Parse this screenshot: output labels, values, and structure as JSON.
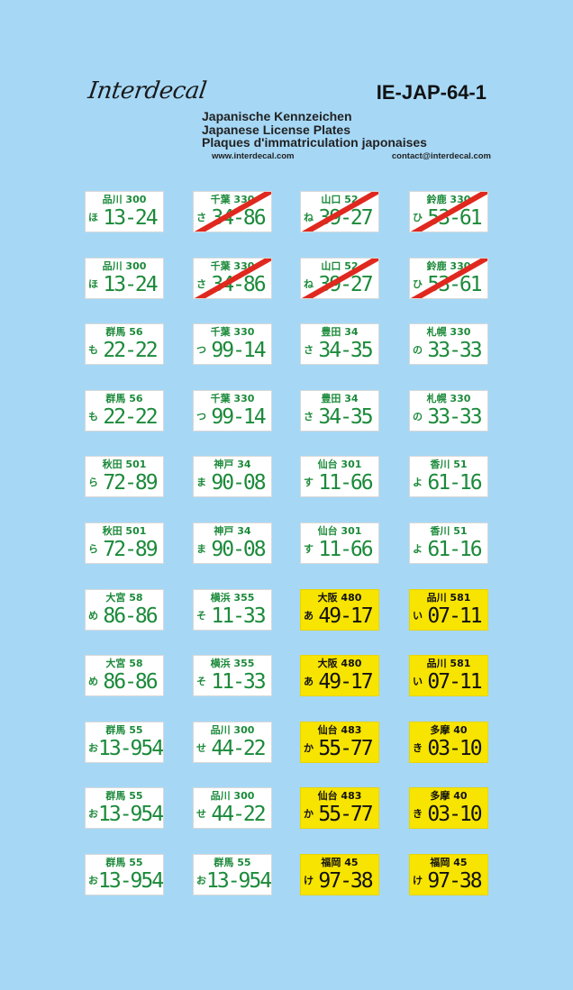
{
  "header": {
    "brand": "Interdecal",
    "code": "IE-JAP-64-1",
    "title_de": "Japanische Kennzeichen",
    "title_en": "Japanese License Plates",
    "title_fr": "Plaques d'immatriculation japonaises",
    "website": "www.interdecal.com",
    "email": "contact@interdecal.com"
  },
  "colors": {
    "background": "#a6d8f6",
    "plate_white": "#ffffff",
    "plate_yellow": "#f7e400",
    "text_green": "#1b8a3a",
    "strike_red": "#e0281e"
  },
  "plates": [
    {
      "top": "品川 300",
      "kana": "ほ",
      "num": "13-24",
      "style": "green",
      "crossed": false
    },
    {
      "top": "千葉 330",
      "kana": "さ",
      "num": "34-86",
      "style": "green",
      "crossed": true
    },
    {
      "top": "山口 52",
      "kana": "ね",
      "num": "39-27",
      "style": "green",
      "crossed": true
    },
    {
      "top": "鈴鹿 330",
      "kana": "ひ",
      "num": "53-61",
      "style": "green",
      "crossed": true
    },
    {
      "top": "品川 300",
      "kana": "ほ",
      "num": "13-24",
      "style": "green",
      "crossed": false
    },
    {
      "top": "千葉 330",
      "kana": "さ",
      "num": "34-86",
      "style": "green",
      "crossed": true
    },
    {
      "top": "山口 52",
      "kana": "ね",
      "num": "39-27",
      "style": "green",
      "crossed": true
    },
    {
      "top": "鈴鹿 330",
      "kana": "ひ",
      "num": "53-61",
      "style": "green",
      "crossed": true
    },
    {
      "top": "群馬 56",
      "kana": "も",
      "num": "22-22",
      "style": "green",
      "crossed": false
    },
    {
      "top": "千葉 330",
      "kana": "つ",
      "num": "99-14",
      "style": "green",
      "crossed": false
    },
    {
      "top": "豊田 34",
      "kana": "さ",
      "num": "34-35",
      "style": "green",
      "crossed": false
    },
    {
      "top": "札幌 330",
      "kana": "の",
      "num": "33-33",
      "style": "green",
      "crossed": false
    },
    {
      "top": "群馬 56",
      "kana": "も",
      "num": "22-22",
      "style": "green",
      "crossed": false
    },
    {
      "top": "千葉 330",
      "kana": "つ",
      "num": "99-14",
      "style": "green",
      "crossed": false
    },
    {
      "top": "豊田 34",
      "kana": "さ",
      "num": "34-35",
      "style": "green",
      "crossed": false
    },
    {
      "top": "札幌 330",
      "kana": "の",
      "num": "33-33",
      "style": "green",
      "crossed": false
    },
    {
      "top": "秋田 501",
      "kana": "ら",
      "num": "72-89",
      "style": "green",
      "crossed": false
    },
    {
      "top": "神戸 34",
      "kana": "ま",
      "num": "90-08",
      "style": "green",
      "crossed": false
    },
    {
      "top": "仙台 301",
      "kana": "す",
      "num": "11-66",
      "style": "green",
      "crossed": false
    },
    {
      "top": "香川 51",
      "kana": "よ",
      "num": "61-16",
      "style": "green",
      "crossed": false
    },
    {
      "top": "秋田 501",
      "kana": "ら",
      "num": "72-89",
      "style": "green",
      "crossed": false
    },
    {
      "top": "神戸 34",
      "kana": "ま",
      "num": "90-08",
      "style": "green",
      "crossed": false
    },
    {
      "top": "仙台 301",
      "kana": "す",
      "num": "11-66",
      "style": "green",
      "crossed": false
    },
    {
      "top": "香川 51",
      "kana": "よ",
      "num": "61-16",
      "style": "green",
      "crossed": false
    },
    {
      "top": "大宮 58",
      "kana": "め",
      "num": "86-86",
      "style": "green",
      "crossed": false
    },
    {
      "top": "横浜 355",
      "kana": "そ",
      "num": "11-33",
      "style": "green",
      "crossed": false
    },
    {
      "top": "大阪 480",
      "kana": "あ",
      "num": "49-17",
      "style": "yellow",
      "crossed": false
    },
    {
      "top": "品川 581",
      "kana": "い",
      "num": "07-11",
      "style": "yellow",
      "crossed": false
    },
    {
      "top": "大宮 58",
      "kana": "め",
      "num": "86-86",
      "style": "green",
      "crossed": false
    },
    {
      "top": "横浜 355",
      "kana": "そ",
      "num": "11-33",
      "style": "green",
      "crossed": false
    },
    {
      "top": "大阪 480",
      "kana": "あ",
      "num": "49-17",
      "style": "yellow",
      "crossed": false
    },
    {
      "top": "品川 581",
      "kana": "い",
      "num": "07-11",
      "style": "yellow",
      "crossed": false
    },
    {
      "top": "群馬 55",
      "kana": "お",
      "num": "13-954",
      "style": "green",
      "crossed": false
    },
    {
      "top": "品川 300",
      "kana": "せ",
      "num": "44-22",
      "style": "green",
      "crossed": false
    },
    {
      "top": "仙台 483",
      "kana": "か",
      "num": "55-77",
      "style": "yellow",
      "crossed": false
    },
    {
      "top": "多摩 40",
      "kana": "き",
      "num": "03-10",
      "style": "yellow",
      "crossed": false
    },
    {
      "top": "群馬 55",
      "kana": "お",
      "num": "13-954",
      "style": "green",
      "crossed": false
    },
    {
      "top": "品川 300",
      "kana": "せ",
      "num": "44-22",
      "style": "green",
      "crossed": false
    },
    {
      "top": "仙台 483",
      "kana": "か",
      "num": "55-77",
      "style": "yellow",
      "crossed": false
    },
    {
      "top": "多摩 40",
      "kana": "き",
      "num": "03-10",
      "style": "yellow",
      "crossed": false
    },
    {
      "top": "群馬 55",
      "kana": "お",
      "num": "13-954",
      "style": "green",
      "crossed": false
    },
    {
      "top": "群馬 55",
      "kana": "お",
      "num": "13-954",
      "style": "green",
      "crossed": false
    },
    {
      "top": "福岡 45",
      "kana": "け",
      "num": "97-38",
      "style": "yellow",
      "crossed": false
    },
    {
      "top": "福岡 45",
      "kana": "け",
      "num": "97-38",
      "style": "yellow",
      "crossed": false
    }
  ]
}
